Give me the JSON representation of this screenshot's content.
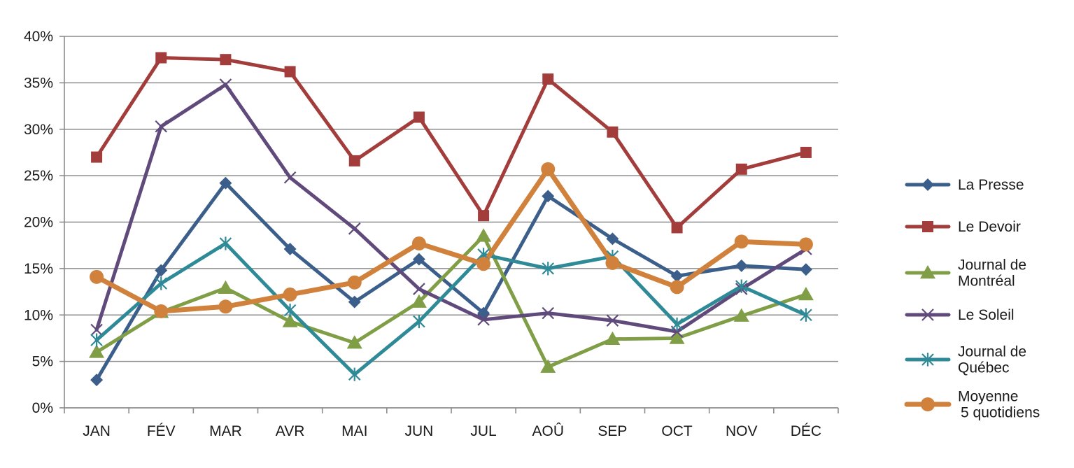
{
  "chart_data": {
    "type": "line",
    "title": "",
    "xlabel": "",
    "ylabel": "",
    "categories": [
      "JAN",
      "FÉV",
      "MAR",
      "AVR",
      "MAI",
      "JUN",
      "JUL",
      "AOÛ",
      "SEP",
      "OCT",
      "NOV",
      "DÉC"
    ],
    "ylim": [
      0,
      40
    ],
    "yticks": [
      0,
      5,
      10,
      15,
      20,
      25,
      30,
      35,
      40
    ],
    "ytick_labels": [
      "0%",
      "5%",
      "10%",
      "15%",
      "20%",
      "25%",
      "30%",
      "35%",
      "40%"
    ],
    "grid": true,
    "legend_position": "right",
    "series": [
      {
        "name": "La Presse",
        "legend_lines": [
          "La Presse"
        ],
        "color": "#3b5f8a",
        "marker": "diamond",
        "values": [
          3.0,
          14.8,
          24.2,
          17.1,
          11.4,
          16.0,
          10.2,
          22.8,
          18.2,
          14.2,
          15.3,
          14.9
        ]
      },
      {
        "name": "Le Devoir",
        "legend_lines": [
          "Le Devoir"
        ],
        "color": "#a23d3b",
        "marker": "square",
        "values": [
          27.0,
          37.7,
          37.5,
          36.2,
          26.6,
          31.3,
          20.7,
          35.4,
          29.7,
          19.4,
          25.7,
          27.5
        ]
      },
      {
        "name": "Journal de Montréal",
        "legend_lines": [
          "Journal de",
          "Montréal"
        ],
        "color": "#7f9e45",
        "marker": "triangle",
        "values": [
          6.0,
          10.3,
          12.9,
          9.3,
          7.0,
          11.4,
          18.5,
          4.4,
          7.4,
          7.5,
          9.9,
          12.2
        ]
      },
      {
        "name": "Le Soleil",
        "legend_lines": [
          "Le Soleil"
        ],
        "color": "#604a7b",
        "marker": "x",
        "values": [
          8.4,
          30.3,
          34.8,
          24.8,
          19.3,
          12.8,
          9.5,
          10.2,
          9.4,
          8.2,
          12.8,
          17.1
        ]
      },
      {
        "name": "Journal de Québec",
        "legend_lines": [
          "Journal de",
          "Québec"
        ],
        "color": "#2f8a98",
        "marker": "star",
        "values": [
          7.3,
          13.4,
          17.7,
          10.5,
          3.6,
          9.3,
          16.5,
          15.0,
          16.3,
          9.0,
          13.1,
          10.0
        ]
      },
      {
        "name": "Moyenne 5 quotidiens",
        "legend_lines": [
          "Moyenne",
          "5 quotidiens"
        ],
        "color": "#d0823d",
        "marker": "circle",
        "values": [
          14.1,
          10.4,
          10.9,
          12.2,
          13.5,
          17.7,
          15.5,
          25.7,
          15.6,
          13.0,
          17.9,
          17.6
        ]
      }
    ]
  }
}
